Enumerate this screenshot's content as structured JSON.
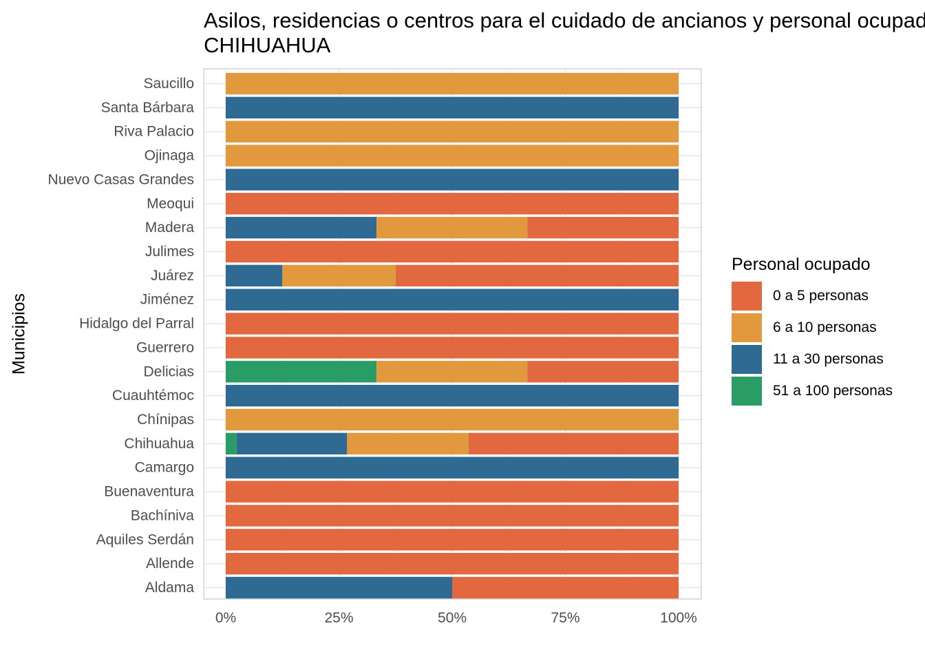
{
  "chart_data": {
    "type": "bar",
    "orientation": "horizontal",
    "stacked": "percent",
    "title_lines": [
      "Asilos, residencias o centros para el cuidado de ancianos y personal ocupado",
      "CHIHUAHUA"
    ],
    "xlabel": "",
    "ylabel": "Municipios",
    "xlim": [
      0,
      1
    ],
    "x_ticks": [
      {
        "value": 0,
        "label": "0%"
      },
      {
        "value": 0.25,
        "label": "25%"
      },
      {
        "value": 0.5,
        "label": "50%"
      },
      {
        "value": 0.75,
        "label": "75%"
      },
      {
        "value": 1,
        "label": "100%"
      }
    ],
    "grid": true,
    "legend": {
      "title": "Personal ocupado",
      "position": "right"
    },
    "categories": [
      "Aldama",
      "Allende",
      "Aquiles Serdán",
      "Bachíniva",
      "Buenaventura",
      "Camargo",
      "Chihuahua",
      "Chínipas",
      "Cuauhtémoc",
      "Delicias",
      "Guerrero",
      "Hidalgo del Parral",
      "Jiménez",
      "Juárez",
      "Julimes",
      "Madera",
      "Meoqui",
      "Nuevo Casas Grandes",
      "Ojinaga",
      "Riva Palacio",
      "Santa Bárbara",
      "Saucillo"
    ],
    "series": [
      {
        "name": "51 a 100 personas",
        "color": "#2a9d66",
        "values": [
          0,
          0,
          0,
          0,
          0,
          0,
          0.024,
          0,
          0,
          0.333,
          0,
          0,
          0,
          0,
          0,
          0,
          0,
          0,
          0,
          0,
          0,
          0
        ]
      },
      {
        "name": "11 a 30 personas",
        "color": "#2e6a92",
        "values": [
          0.5,
          0,
          0,
          0,
          0,
          1,
          0.244,
          0,
          1,
          0,
          0,
          0,
          1,
          0.125,
          0,
          0.333,
          0,
          1,
          0,
          0,
          1,
          0
        ]
      },
      {
        "name": "6 a 10 personas",
        "color": "#e2983d",
        "values": [
          0,
          0,
          0,
          0,
          0,
          0,
          0.268,
          1,
          0,
          0.333,
          0,
          0,
          0,
          0.25,
          0,
          0.333,
          0,
          0,
          1,
          1,
          0,
          1
        ]
      },
      {
        "name": "0 a 5 personas",
        "color": "#e2693f",
        "values": [
          0.5,
          1,
          1,
          1,
          1,
          0,
          0.464,
          0,
          0,
          0.334,
          1,
          1,
          0,
          0.625,
          1,
          0.334,
          1,
          0,
          0,
          0,
          0,
          0
        ]
      }
    ],
    "legend_order": [
      "0 a 5 personas",
      "6 a 10 personas",
      "11 a 30 personas",
      "51 a 100 personas"
    ]
  }
}
